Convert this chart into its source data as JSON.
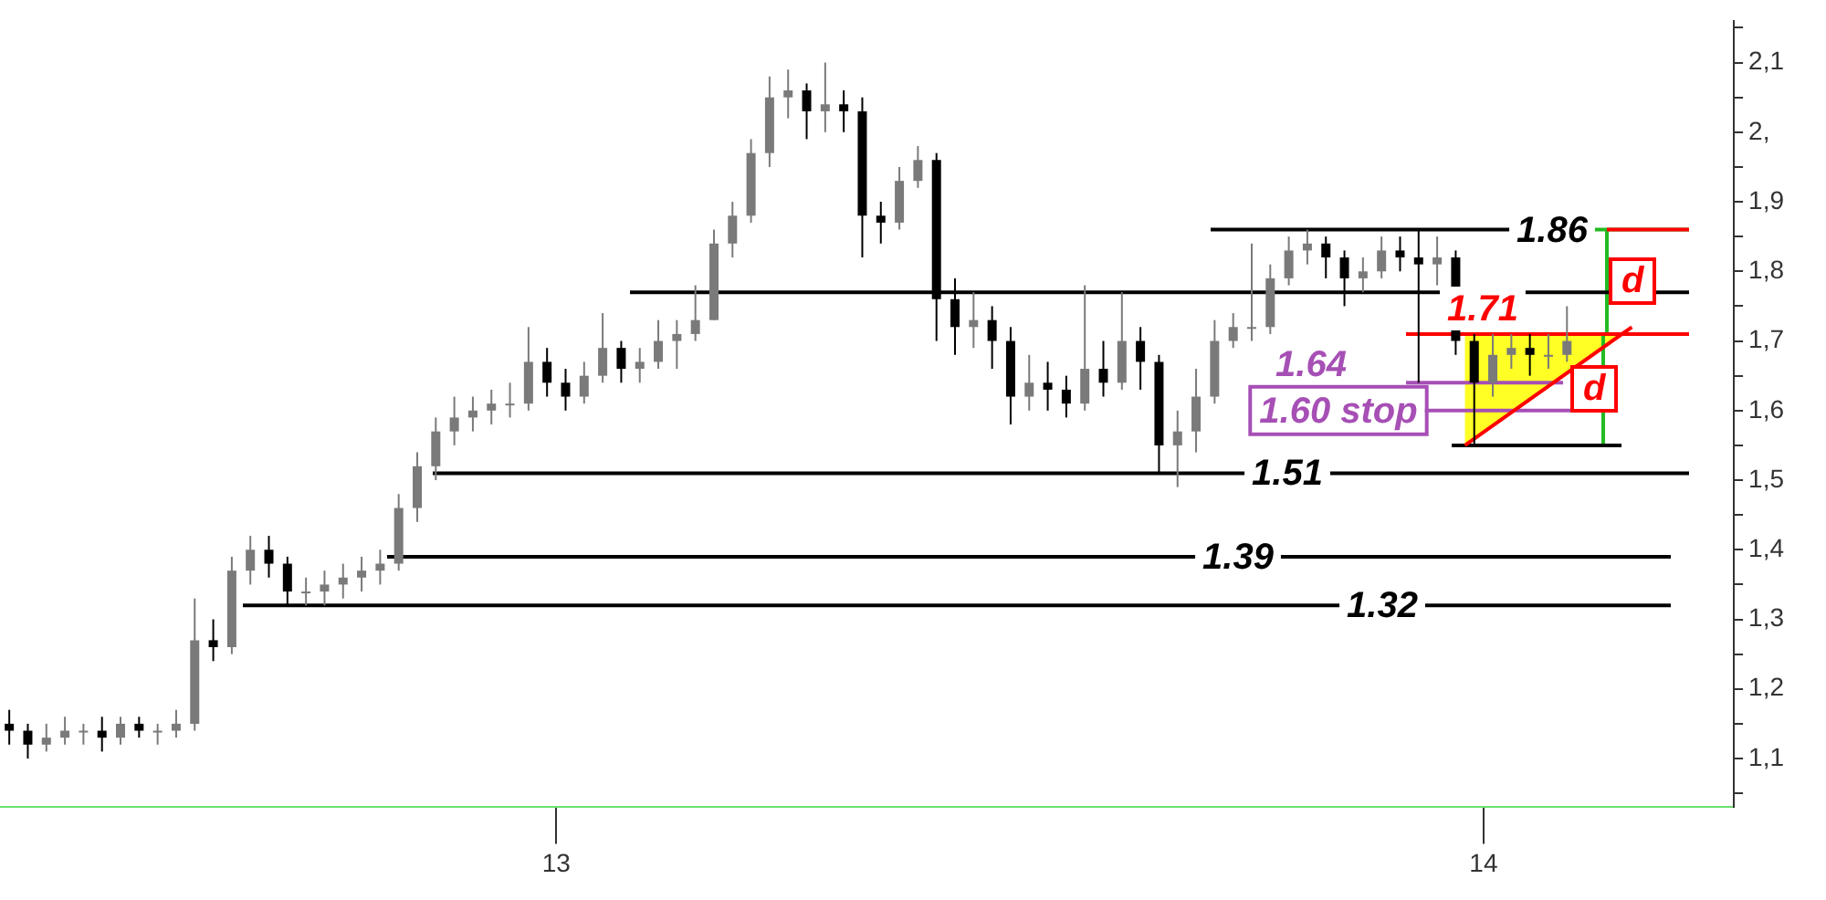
{
  "chart_data": {
    "type": "candlestick",
    "x": [
      2012.41,
      2012.43,
      2012.45,
      2012.47,
      2012.49,
      2012.51,
      2012.53,
      2012.55,
      2012.57,
      2012.59,
      2012.61,
      2012.63,
      2012.65,
      2012.67,
      2012.69,
      2012.71,
      2012.73,
      2012.75,
      2012.77,
      2012.79,
      2012.81,
      2012.83,
      2012.85,
      2012.87,
      2012.89,
      2012.91,
      2012.93,
      2012.95,
      2012.97,
      2012.99,
      2013.01,
      2013.03,
      2013.05,
      2013.07,
      2013.09,
      2013.11,
      2013.13,
      2013.15,
      2013.17,
      2013.19,
      2013.21,
      2013.23,
      2013.25,
      2013.27,
      2013.29,
      2013.31,
      2013.33,
      2013.35,
      2013.37,
      2013.39,
      2013.41,
      2013.43,
      2013.45,
      2013.47,
      2013.49,
      2013.51,
      2013.53,
      2013.55,
      2013.57,
      2013.59,
      2013.61,
      2013.63,
      2013.65,
      2013.67,
      2013.69,
      2013.71,
      2013.73,
      2013.75,
      2013.77,
      2013.79,
      2013.81,
      2013.83,
      2013.85,
      2013.87,
      2013.89,
      2013.91,
      2013.93,
      2013.95,
      2013.97,
      2013.99,
      2014.01,
      2014.03,
      2014.05,
      2014.07,
      2014.09
    ],
    "ohlc": [
      [
        1.15,
        1.17,
        1.12,
        1.14
      ],
      [
        1.14,
        1.15,
        1.1,
        1.12
      ],
      [
        1.12,
        1.15,
        1.11,
        1.13
      ],
      [
        1.13,
        1.16,
        1.12,
        1.14
      ],
      [
        1.14,
        1.15,
        1.12,
        1.14
      ],
      [
        1.14,
        1.16,
        1.11,
        1.13
      ],
      [
        1.13,
        1.16,
        1.12,
        1.15
      ],
      [
        1.15,
        1.16,
        1.13,
        1.14
      ],
      [
        1.14,
        1.15,
        1.12,
        1.14
      ],
      [
        1.14,
        1.17,
        1.13,
        1.15
      ],
      [
        1.15,
        1.33,
        1.14,
        1.27
      ],
      [
        1.27,
        1.3,
        1.24,
        1.26
      ],
      [
        1.26,
        1.39,
        1.25,
        1.37
      ],
      [
        1.37,
        1.42,
        1.35,
        1.4
      ],
      [
        1.4,
        1.42,
        1.36,
        1.38
      ],
      [
        1.38,
        1.39,
        1.32,
        1.34
      ],
      [
        1.34,
        1.36,
        1.32,
        1.34
      ],
      [
        1.34,
        1.37,
        1.32,
        1.35
      ],
      [
        1.35,
        1.38,
        1.33,
        1.36
      ],
      [
        1.36,
        1.39,
        1.34,
        1.37
      ],
      [
        1.37,
        1.4,
        1.35,
        1.38
      ],
      [
        1.38,
        1.48,
        1.37,
        1.46
      ],
      [
        1.46,
        1.54,
        1.44,
        1.52
      ],
      [
        1.52,
        1.59,
        1.5,
        1.57
      ],
      [
        1.57,
        1.62,
        1.55,
        1.59
      ],
      [
        1.59,
        1.62,
        1.57,
        1.6
      ],
      [
        1.6,
        1.63,
        1.58,
        1.61
      ],
      [
        1.61,
        1.64,
        1.59,
        1.61
      ],
      [
        1.61,
        1.72,
        1.6,
        1.67
      ],
      [
        1.67,
        1.69,
        1.62,
        1.64
      ],
      [
        1.64,
        1.66,
        1.6,
        1.62
      ],
      [
        1.62,
        1.67,
        1.61,
        1.65
      ],
      [
        1.65,
        1.74,
        1.64,
        1.69
      ],
      [
        1.69,
        1.7,
        1.64,
        1.66
      ],
      [
        1.66,
        1.69,
        1.64,
        1.67
      ],
      [
        1.67,
        1.73,
        1.66,
        1.7
      ],
      [
        1.7,
        1.73,
        1.66,
        1.71
      ],
      [
        1.71,
        1.78,
        1.7,
        1.73
      ],
      [
        1.73,
        1.86,
        1.73,
        1.84
      ],
      [
        1.84,
        1.9,
        1.82,
        1.88
      ],
      [
        1.88,
        1.99,
        1.87,
        1.97
      ],
      [
        1.97,
        2.08,
        1.95,
        2.05
      ],
      [
        2.05,
        2.09,
        2.02,
        2.06
      ],
      [
        2.06,
        2.07,
        1.99,
        2.03
      ],
      [
        2.03,
        2.1,
        2.0,
        2.04
      ],
      [
        2.04,
        2.06,
        2.0,
        2.03
      ],
      [
        2.03,
        2.05,
        1.82,
        1.88
      ],
      [
        1.88,
        1.9,
        1.84,
        1.87
      ],
      [
        1.87,
        1.95,
        1.86,
        1.93
      ],
      [
        1.93,
        1.98,
        1.92,
        1.96
      ],
      [
        1.96,
        1.97,
        1.7,
        1.76
      ],
      [
        1.76,
        1.79,
        1.68,
        1.72
      ],
      [
        1.72,
        1.77,
        1.69,
        1.73
      ],
      [
        1.73,
        1.75,
        1.66,
        1.7
      ],
      [
        1.7,
        1.72,
        1.58,
        1.62
      ],
      [
        1.62,
        1.68,
        1.6,
        1.64
      ],
      [
        1.64,
        1.67,
        1.6,
        1.63
      ],
      [
        1.63,
        1.65,
        1.59,
        1.61
      ],
      [
        1.61,
        1.78,
        1.6,
        1.66
      ],
      [
        1.66,
        1.7,
        1.62,
        1.64
      ],
      [
        1.64,
        1.77,
        1.63,
        1.7
      ],
      [
        1.7,
        1.72,
        1.63,
        1.67
      ],
      [
        1.67,
        1.68,
        1.51,
        1.55
      ],
      [
        1.55,
        1.6,
        1.49,
        1.57
      ],
      [
        1.57,
        1.66,
        1.54,
        1.62
      ],
      [
        1.62,
        1.73,
        1.61,
        1.7
      ],
      [
        1.7,
        1.74,
        1.69,
        1.72
      ],
      [
        1.72,
        1.84,
        1.7,
        1.72
      ],
      [
        1.72,
        1.81,
        1.71,
        1.79
      ],
      [
        1.79,
        1.85,
        1.78,
        1.83
      ],
      [
        1.83,
        1.86,
        1.81,
        1.84
      ],
      [
        1.84,
        1.85,
        1.79,
        1.82
      ],
      [
        1.82,
        1.83,
        1.75,
        1.79
      ],
      [
        1.79,
        1.82,
        1.77,
        1.8
      ],
      [
        1.8,
        1.85,
        1.79,
        1.83
      ],
      [
        1.83,
        1.85,
        1.8,
        1.82
      ],
      [
        1.82,
        1.86,
        1.64,
        1.81
      ],
      [
        1.81,
        1.85,
        1.78,
        1.82
      ],
      [
        1.82,
        1.83,
        1.68,
        1.7
      ],
      [
        1.7,
        1.71,
        1.55,
        1.64
      ],
      [
        1.64,
        1.71,
        1.62,
        1.68
      ],
      [
        1.68,
        1.71,
        1.66,
        1.69
      ],
      [
        1.69,
        1.71,
        1.65,
        1.68
      ],
      [
        1.68,
        1.71,
        1.66,
        1.68
      ],
      [
        1.68,
        1.75,
        1.67,
        1.7
      ]
    ],
    "series": [
      {
        "type": "line",
        "color": "#ff0000",
        "x": [
          2013.98,
          2014.16
        ],
        "values": [
          1.55,
          1.72
        ]
      }
    ],
    "xlim": [
      2012.4,
      2014.27
    ],
    "xticks": [
      {
        "value": 2013,
        "label": "13"
      },
      {
        "value": 2014,
        "label": "14"
      }
    ],
    "ylim": [
      1.03,
      2.16
    ],
    "yticks": [
      {
        "value": 1.05,
        "label": null
      },
      {
        "value": 1.1,
        "label": "1,1"
      },
      {
        "value": 1.15,
        "label": null
      },
      {
        "value": 1.2,
        "label": "1,2"
      },
      {
        "value": 1.25,
        "label": null
      },
      {
        "value": 1.3,
        "label": "1,3"
      },
      {
        "value": 1.35,
        "label": null
      },
      {
        "value": 1.4,
        "label": "1,4"
      },
      {
        "value": 1.45,
        "label": null
      },
      {
        "value": 1.5,
        "label": "1,5"
      },
      {
        "value": 1.55,
        "label": null
      },
      {
        "value": 1.6,
        "label": "1,6"
      },
      {
        "value": 1.65,
        "label": null
      },
      {
        "value": 1.7,
        "label": "1,7"
      },
      {
        "value": 1.75,
        "label": null
      },
      {
        "value": 1.8,
        "label": "1,8"
      },
      {
        "value": 1.85,
        "label": null
      },
      {
        "value": 1.9,
        "label": "1,9"
      },
      {
        "value": 1.95,
        "label": null
      },
      {
        "value": 2.0,
        "label": "2,"
      },
      {
        "value": 2.05,
        "label": null
      },
      {
        "value": 2.1,
        "label": "2,1"
      },
      {
        "value": 2.15,
        "label": null
      }
    ],
    "ref_lines": [
      {
        "axis": "y",
        "value": 1.86,
        "label": "1.86",
        "color": "#000000"
      },
      {
        "axis": "y",
        "value": 1.77,
        "color": "#000000"
      },
      {
        "axis": "y",
        "value": 1.71,
        "label": "1.71",
        "color": "#ff0000"
      },
      {
        "axis": "y",
        "value": 1.64,
        "label": "1.64",
        "color": "#a64fb5"
      },
      {
        "axis": "y",
        "value": 1.6,
        "label": "1.60 stop",
        "color": "#a64fb5"
      },
      {
        "axis": "y",
        "value": 1.55,
        "color": "#000000"
      },
      {
        "axis": "y",
        "value": 1.51,
        "label": "1.51",
        "color": "#000000"
      },
      {
        "axis": "y",
        "value": 1.39,
        "label": "1.39",
        "color": "#000000"
      },
      {
        "axis": "y",
        "value": 1.32,
        "label": "1.32",
        "color": "#000000"
      }
    ],
    "annotations": [
      "d",
      "d"
    ],
    "grid": false,
    "legend": false
  }
}
